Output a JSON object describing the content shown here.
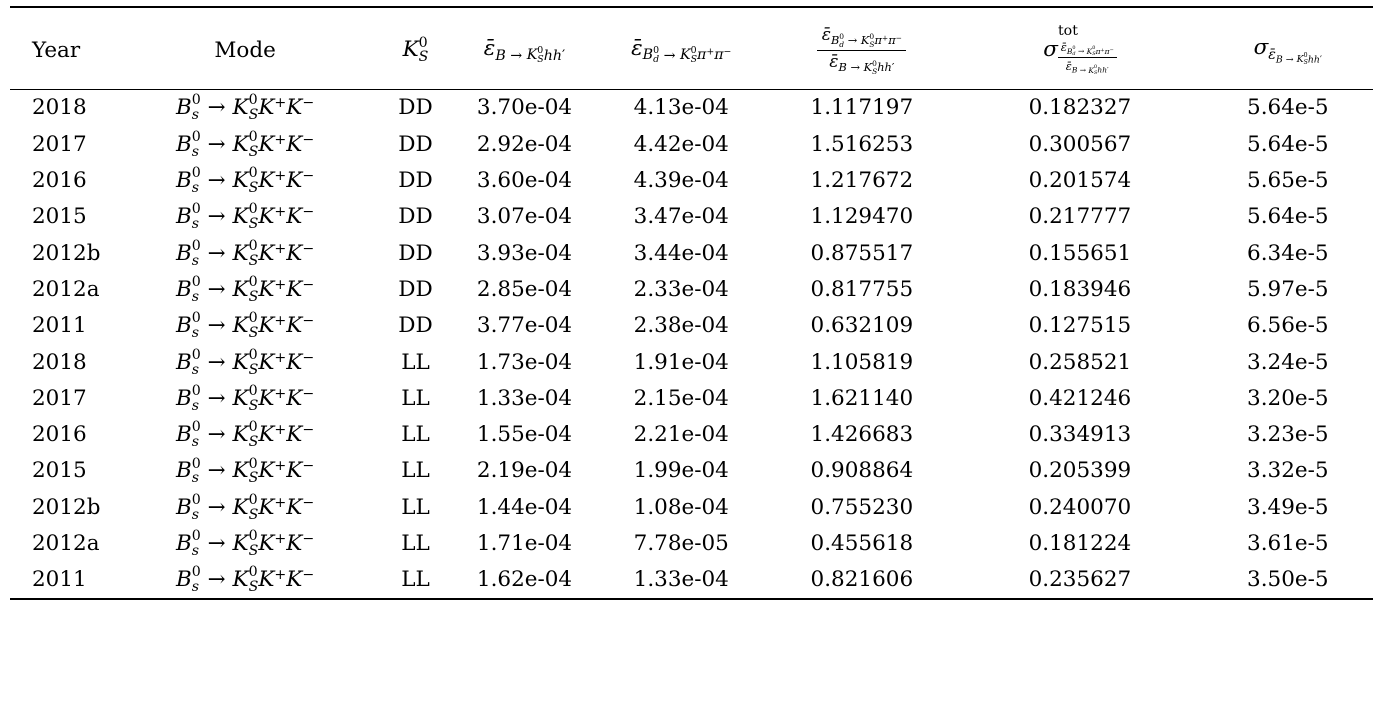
{
  "table": {
    "columns": [
      {
        "id": "year",
        "header": "Year",
        "header_math": false,
        "cell_math": false,
        "align": "left"
      },
      {
        "id": "mode",
        "header": "Mode",
        "header_math": false,
        "cell_math": true,
        "align": "center"
      },
      {
        "id": "ks",
        "header": "K_{S}^{0}",
        "header_math": true,
        "cell_math": false,
        "align": "center"
      },
      {
        "id": "eff_kshh",
        "header": "ε̄_{B \\to K_{S}^{0}hh′}",
        "header_math": true,
        "cell_math": false,
        "align": "center"
      },
      {
        "id": "eff_kspipi",
        "header": "ε̄_{B_{d}^{0} \\to K_{S}^{0}π^{+}π^{−}}",
        "header_math": true,
        "cell_math": false,
        "align": "center"
      },
      {
        "id": "ratio",
        "header": "\\frac{ε̄_{B_{d}^{0} \\to K_{S}^{0}π^{+}π^{−}}}{ε̄_{B \\to K_{S}^{0}hh′}}",
        "header_math": true,
        "cell_math": false,
        "align": "center"
      },
      {
        "id": "sigma_ratio",
        "header": "σ^{\\text{tot}}_{\\frac{ε̄_{B_{d}^{0} \\to K_{S}^{0}π^{+}π^{−}}}{ε̄_{B \\to K_{S}^{0}hh′}}}",
        "header_math": true,
        "cell_math": false,
        "align": "center"
      },
      {
        "id": "sigma_eff",
        "header": "σ_{ε̄_{B \\to K_{S}^{0}hh′}}",
        "header_math": true,
        "cell_math": false,
        "align": "center"
      }
    ],
    "rows": [
      {
        "year": "2018",
        "mode": "B_{s}^{0} \\to K_{S}^{0}K^{+}K^{−}",
        "ks": "DD",
        "eff_kshh": "3.70e-04",
        "eff_kspipi": "4.13e-04",
        "ratio": "1.117197",
        "sigma_ratio": "0.182327",
        "sigma_eff": "5.64e-5"
      },
      {
        "year": "2017",
        "mode": "B_{s}^{0} \\to K_{S}^{0}K^{+}K^{−}",
        "ks": "DD",
        "eff_kshh": "2.92e-04",
        "eff_kspipi": "4.42e-04",
        "ratio": "1.516253",
        "sigma_ratio": "0.300567",
        "sigma_eff": "5.64e-5"
      },
      {
        "year": "2016",
        "mode": "B_{s}^{0} \\to K_{S}^{0}K^{+}K^{−}",
        "ks": "DD",
        "eff_kshh": "3.60e-04",
        "eff_kspipi": "4.39e-04",
        "ratio": "1.217672",
        "sigma_ratio": "0.201574",
        "sigma_eff": "5.65e-5"
      },
      {
        "year": "2015",
        "mode": "B_{s}^{0} \\to K_{S}^{0}K^{+}K^{−}",
        "ks": "DD",
        "eff_kshh": "3.07e-04",
        "eff_kspipi": "3.47e-04",
        "ratio": "1.129470",
        "sigma_ratio": "0.217777",
        "sigma_eff": "5.64e-5"
      },
      {
        "year": "2012b",
        "mode": "B_{s}^{0} \\to K_{S}^{0}K^{+}K^{−}",
        "ks": "DD",
        "eff_kshh": "3.93e-04",
        "eff_kspipi": "3.44e-04",
        "ratio": "0.875517",
        "sigma_ratio": "0.155651",
        "sigma_eff": "6.34e-5"
      },
      {
        "year": "2012a",
        "mode": "B_{s}^{0} \\to K_{S}^{0}K^{+}K^{−}",
        "ks": "DD",
        "eff_kshh": "2.85e-04",
        "eff_kspipi": "2.33e-04",
        "ratio": "0.817755",
        "sigma_ratio": "0.183946",
        "sigma_eff": "5.97e-5"
      },
      {
        "year": "2011",
        "mode": "B_{s}^{0} \\to K_{S}^{0}K^{+}K^{−}",
        "ks": "DD",
        "eff_kshh": "3.77e-04",
        "eff_kspipi": "2.38e-04",
        "ratio": "0.632109",
        "sigma_ratio": "0.127515",
        "sigma_eff": "6.56e-5"
      },
      {
        "year": "2018",
        "mode": "B_{s}^{0} \\to K_{S}^{0}K^{+}K^{−}",
        "ks": "LL",
        "eff_kshh": "1.73e-04",
        "eff_kspipi": "1.91e-04",
        "ratio": "1.105819",
        "sigma_ratio": "0.258521",
        "sigma_eff": "3.24e-5"
      },
      {
        "year": "2017",
        "mode": "B_{s}^{0} \\to K_{S}^{0}K^{+}K^{−}",
        "ks": "LL",
        "eff_kshh": "1.33e-04",
        "eff_kspipi": "2.15e-04",
        "ratio": "1.621140",
        "sigma_ratio": "0.421246",
        "sigma_eff": "3.20e-5"
      },
      {
        "year": "2016",
        "mode": "B_{s}^{0} \\to K_{S}^{0}K^{+}K^{−}",
        "ks": "LL",
        "eff_kshh": "1.55e-04",
        "eff_kspipi": "2.21e-04",
        "ratio": "1.426683",
        "sigma_ratio": "0.334913",
        "sigma_eff": "3.23e-5"
      },
      {
        "year": "2015",
        "mode": "B_{s}^{0} \\to K_{S}^{0}K^{+}K^{−}",
        "ks": "LL",
        "eff_kshh": "2.19e-04",
        "eff_kspipi": "1.99e-04",
        "ratio": "0.908864",
        "sigma_ratio": "0.205399",
        "sigma_eff": "3.32e-5"
      },
      {
        "year": "2012b",
        "mode": "B_{s}^{0} \\to K_{S}^{0}K^{+}K^{−}",
        "ks": "LL",
        "eff_kshh": "1.44e-04",
        "eff_kspipi": "1.08e-04",
        "ratio": "0.755230",
        "sigma_ratio": "0.240070",
        "sigma_eff": "3.49e-5"
      },
      {
        "year": "2012a",
        "mode": "B_{s}^{0} \\to K_{S}^{0}K^{+}K^{−}",
        "ks": "LL",
        "eff_kshh": "1.71e-04",
        "eff_kspipi": "7.78e-05",
        "ratio": "0.455618",
        "sigma_ratio": "0.181224",
        "sigma_eff": "3.61e-5"
      },
      {
        "year": "2011",
        "mode": "B_{s}^{0} \\to K_{S}^{0}K^{+}K^{−}",
        "ks": "LL",
        "eff_kshh": "1.62e-04",
        "eff_kspipi": "1.33e-04",
        "ratio": "0.821606",
        "sigma_ratio": "0.235627",
        "sigma_eff": "3.50e-5"
      }
    ]
  }
}
